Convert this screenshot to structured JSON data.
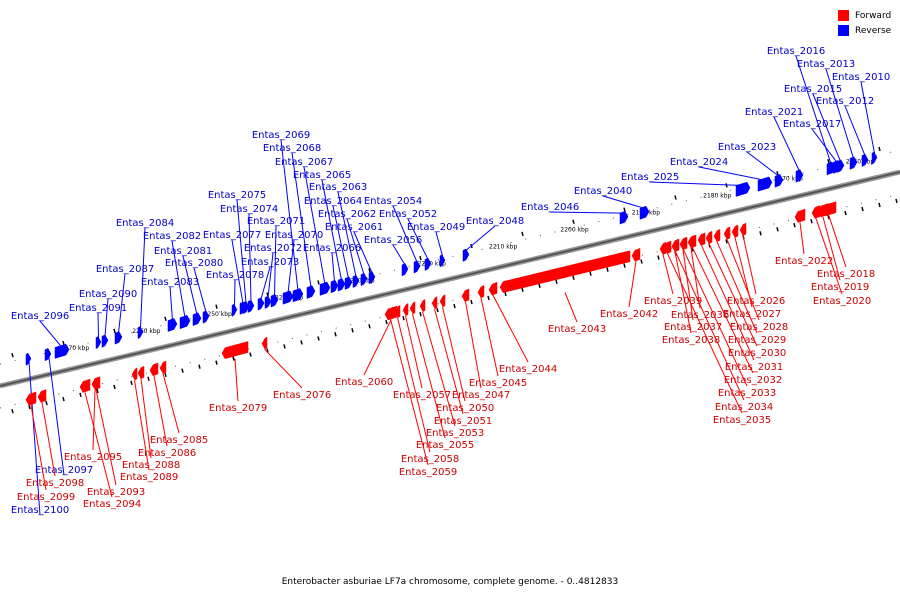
{
  "legend": {
    "forward_label": "Forward",
    "reverse_label": "Reverse",
    "forward_color": "#ff0000",
    "reverse_color": "#0000ff"
  },
  "caption": "Enterobacter asburiae LF7a chromosome, complete genome. - 0..4812833",
  "scale": {
    "start_kbp": 2160,
    "end_kbp": 2270,
    "labels": [
      "2160 kbp",
      "2170 kbp",
      "2180 kbp",
      "2190 kbp",
      "2200 kbp",
      "2210 kbp",
      "2220 kbp",
      "2230 kbp",
      "2240 kbp",
      "2250 kbp",
      "2260 kbp",
      "2270 kbp"
    ]
  },
  "genes": {
    "reverse": [
      "Entas_2010",
      "Entas_2012",
      "Entas_2013",
      "Entas_2015",
      "Entas_2016",
      "Entas_2017",
      "Entas_2021",
      "Entas_2023",
      "Entas_2024",
      "Entas_2025",
      "Entas_2040",
      "Entas_2046",
      "Entas_2048",
      "Entas_2049",
      "Entas_2052",
      "Entas_2054",
      "Entas_2056",
      "Entas_2061",
      "Entas_2062",
      "Entas_2063",
      "Entas_2064",
      "Entas_2065",
      "Entas_2066",
      "Entas_2067",
      "Entas_2068",
      "Entas_2069",
      "Entas_2070",
      "Entas_2071",
      "Entas_2072",
      "Entas_2073",
      "Entas_2074",
      "Entas_2075",
      "Entas_2077",
      "Entas_2078",
      "Entas_2080",
      "Entas_2081",
      "Entas_2082",
      "Entas_2083",
      "Entas_2084",
      "Entas_2087",
      "Entas_2090",
      "Entas_2091",
      "Entas_2096",
      "Entas_2097",
      "Entas_2100"
    ],
    "forward": [
      "Entas_2018",
      "Entas_2019",
      "Entas_2020",
      "Entas_2022",
      "Entas_2026",
      "Entas_2027",
      "Entas_2028",
      "Entas_2029",
      "Entas_2030",
      "Entas_2031",
      "Entas_2032",
      "Entas_2033",
      "Entas_2034",
      "Entas_2035",
      "Entas_2036",
      "Entas_2037",
      "Entas_2038",
      "Entas_2039",
      "Entas_2042",
      "Entas_2043",
      "Entas_2044",
      "Entas_2045",
      "Entas_2047",
      "Entas_2050",
      "Entas_2051",
      "Entas_2053",
      "Entas_2055",
      "Entas_2057",
      "Entas_2058",
      "Entas_2059",
      "Entas_2060",
      "Entas_2076",
      "Entas_2079",
      "Entas_2085",
      "Entas_2086",
      "Entas_2088",
      "Entas_2089",
      "Entas_2093",
      "Entas_2094",
      "Entas_2095",
      "Entas_2098",
      "Entas_2099"
    ]
  }
}
